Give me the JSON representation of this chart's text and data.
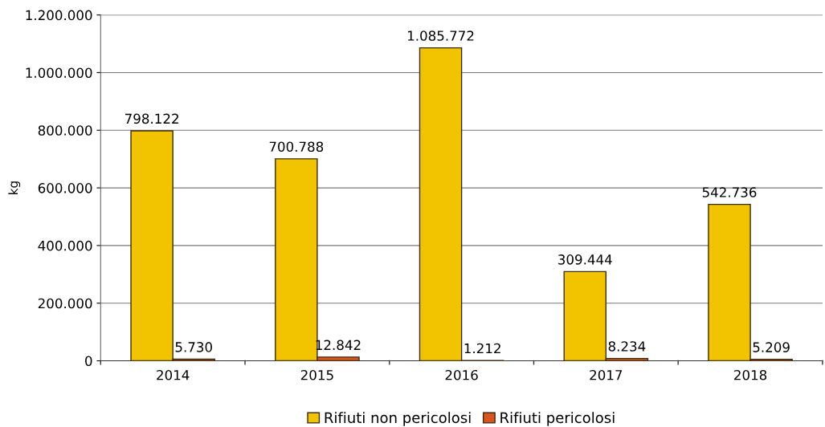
{
  "chart_data": {
    "type": "bar",
    "ylabel": "kg",
    "categories": [
      "2014",
      "2015",
      "2016",
      "2017",
      "2018"
    ],
    "series": [
      {
        "name": "Rifiuti non pericolosi",
        "color": "#f2c400",
        "values": [
          798122,
          700788,
          1085772,
          309444,
          542736
        ],
        "value_labels": [
          "798.122",
          "700.788",
          "1.085.772",
          "309.444",
          "542.736"
        ]
      },
      {
        "name": "Rifiuti pericolosi",
        "color": "#d8561e",
        "values": [
          5730,
          12842,
          1212,
          8234,
          5209
        ],
        "value_labels": [
          "5.730",
          "12.842",
          "1.212",
          "8.234",
          "5.209"
        ]
      }
    ],
    "ylim": [
      0,
      1200000
    ],
    "yticks": [
      {
        "value": 0,
        "label": "0"
      },
      {
        "value": 200000,
        "label": "200.000"
      },
      {
        "value": 400000,
        "label": "400.000"
      },
      {
        "value": 600000,
        "label": "600.000"
      },
      {
        "value": 800000,
        "label": "800.000"
      },
      {
        "value": 1000000,
        "label": "1.000.000"
      },
      {
        "value": 1200000,
        "label": "1.200.000"
      }
    ],
    "grid": "y",
    "legend": "bottom"
  }
}
